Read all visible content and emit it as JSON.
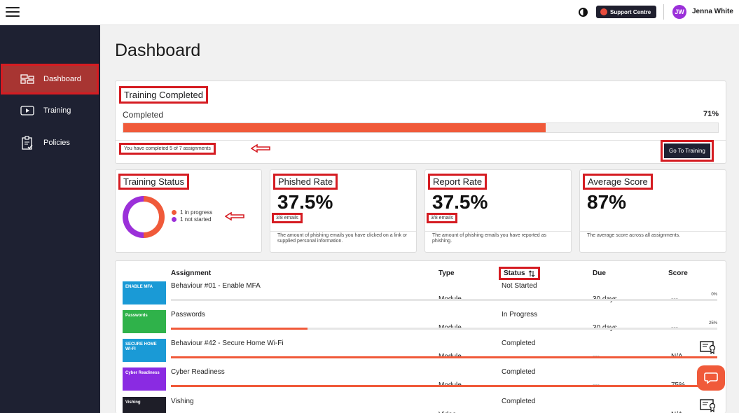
{
  "topbar": {
    "support_label": "Support Centre",
    "user_initials": "JW",
    "user_name": "Jenna White"
  },
  "sidebar": {
    "items": [
      {
        "label": "Dashboard",
        "icon": "dashboard-icon",
        "active": true
      },
      {
        "label": "Training",
        "icon": "play-icon",
        "active": false
      },
      {
        "label": "Policies",
        "icon": "clipboard-check-icon",
        "active": false
      }
    ]
  },
  "page": {
    "title": "Dashboard"
  },
  "training_completed": {
    "title": "Training Completed",
    "completed_label": "Completed",
    "percent_text": "71%",
    "progress": 0.71,
    "note": "You have completed 5 of 7 assignments",
    "button_label": "Go To Training"
  },
  "training_status": {
    "title": "Training Status",
    "legend": [
      {
        "label": "1 in progress",
        "color": "#f05a3a"
      },
      {
        "label": "1 not started",
        "color": "#9b30d9"
      }
    ]
  },
  "phished_rate": {
    "title": "Phished Rate",
    "value": "37.5%",
    "emails": "3/8 emails",
    "description": "The amount of phishing emails you have clicked on a link or supplied personal information."
  },
  "report_rate": {
    "title": "Report Rate",
    "value": "37.5%",
    "emails": "3/8 emails",
    "description": "The amount of phishing emails you have reported as phishing."
  },
  "average_score": {
    "title": "Average Score",
    "value": "87%",
    "description": "The average score across all assignments."
  },
  "table": {
    "headers": {
      "assignment": "Assignment",
      "type": "Type",
      "status": "Status",
      "due": "Due",
      "score": "Score"
    },
    "rows": [
      {
        "thumb_text": "ENABLE MFA",
        "thumb_color": "#1a9ad6",
        "name": "Behaviour #01 - Enable MFA",
        "type": "Module",
        "status": "Not Started",
        "due": "30 days",
        "score": "---",
        "progress": 0.0,
        "progress_label": "0%",
        "certificate": false
      },
      {
        "thumb_text": "Passwords",
        "thumb_color": "#2fb24a",
        "name": "Passwords",
        "type": "Module",
        "status": "In Progress",
        "due": "30 days",
        "score": "---",
        "progress": 0.25,
        "progress_label": "25%",
        "certificate": false
      },
      {
        "thumb_text": "SECURE HOME WI-FI",
        "thumb_color": "#1a9ad6",
        "name": "Behaviour #42 - Secure Home Wi-Fi",
        "type": "Module",
        "status": "Completed",
        "due": "---",
        "score": "N/A",
        "progress": 1.0,
        "progress_label": "",
        "certificate": true
      },
      {
        "thumb_text": "Cyber Readiness",
        "thumb_color": "#8a2be2",
        "name": "Cyber Readiness",
        "type": "Module",
        "status": "Completed",
        "due": "---",
        "score": "75%",
        "progress": 1.0,
        "progress_label": "",
        "certificate": false
      },
      {
        "thumb_text": "Vishing",
        "thumb_color": "#1e1e28",
        "name": "Vishing",
        "type": "Video",
        "status": "Completed",
        "due": "---",
        "score": "N/A",
        "progress": 1.0,
        "progress_label": "",
        "certificate": true
      }
    ]
  },
  "colors": {
    "accent": "#f05a3a",
    "sidebar": "#1e2132",
    "highlight": "#d51c22",
    "purple": "#9b30d9"
  }
}
